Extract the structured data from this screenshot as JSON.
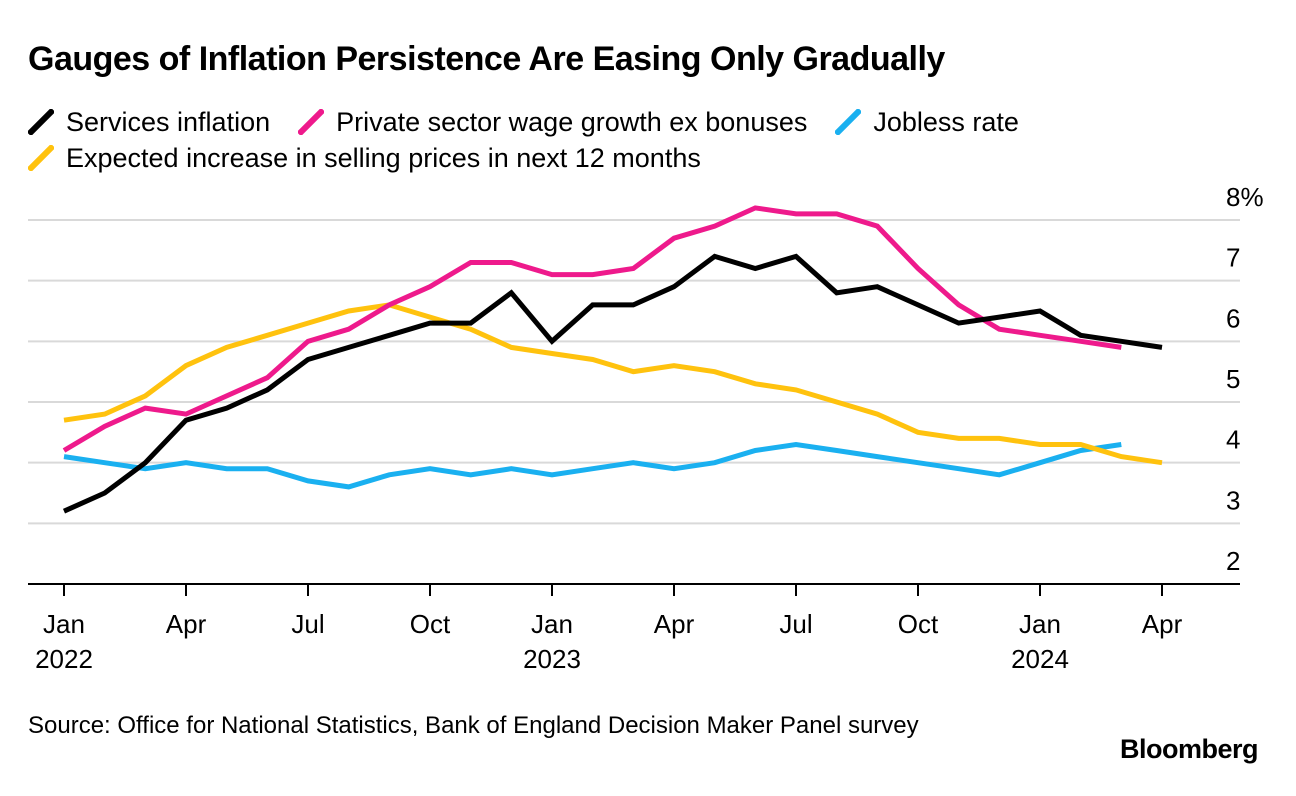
{
  "title": "Gauges of Inflation Persistence Are Easing Only Gradually",
  "source": "Source: Office for National Statistics, Bank of England Decision Maker Panel survey",
  "brand": "Bloomberg",
  "colors": {
    "services": "#000000",
    "wages": "#ee1a8c",
    "jobless": "#1ab0f0",
    "prices": "#ffc20e",
    "grid": "#d9d9d9",
    "axis": "#000000"
  },
  "chart_data": {
    "type": "line",
    "title": "Gauges of Inflation Persistence Are Easing Only Gradually",
    "xlabel": "",
    "ylabel": "",
    "ylim": [
      2,
      8
    ],
    "y_unit": "%",
    "y_ticks": [
      "8%",
      "7",
      "6",
      "5",
      "4",
      "3",
      "2"
    ],
    "grid": true,
    "legend_position": "top-left",
    "x_start": "2022-01",
    "x_end": "2024-04",
    "x_ticks": [
      {
        "date": "2022-01",
        "month": "Jan",
        "year": "2022"
      },
      {
        "date": "2022-04",
        "month": "Apr",
        "year": ""
      },
      {
        "date": "2022-07",
        "month": "Jul",
        "year": ""
      },
      {
        "date": "2022-10",
        "month": "Oct",
        "year": ""
      },
      {
        "date": "2023-01",
        "month": "Jan",
        "year": "2023"
      },
      {
        "date": "2023-04",
        "month": "Apr",
        "year": ""
      },
      {
        "date": "2023-07",
        "month": "Jul",
        "year": ""
      },
      {
        "date": "2023-10",
        "month": "Oct",
        "year": ""
      },
      {
        "date": "2024-01",
        "month": "Jan",
        "year": "2024"
      },
      {
        "date": "2024-04",
        "month": "Apr",
        "year": ""
      }
    ],
    "x": [
      "2022-01",
      "2022-02",
      "2022-03",
      "2022-04",
      "2022-05",
      "2022-06",
      "2022-07",
      "2022-08",
      "2022-09",
      "2022-10",
      "2022-11",
      "2022-12",
      "2023-01",
      "2023-02",
      "2023-03",
      "2023-04",
      "2023-05",
      "2023-06",
      "2023-07",
      "2023-08",
      "2023-09",
      "2023-10",
      "2023-11",
      "2023-12",
      "2024-01",
      "2024-02",
      "2024-03",
      "2024-04"
    ],
    "series": [
      {
        "key": "services",
        "name": "Services inflation",
        "values": [
          3.2,
          3.5,
          4.0,
          4.7,
          4.9,
          5.2,
          5.7,
          5.9,
          6.1,
          6.3,
          6.3,
          6.8,
          6.0,
          6.6,
          6.6,
          6.9,
          7.4,
          7.2,
          7.4,
          6.8,
          6.9,
          6.6,
          6.3,
          6.4,
          6.5,
          6.1,
          6.0,
          5.9
        ]
      },
      {
        "key": "wages",
        "name": "Private sector wage growth ex bonuses",
        "values": [
          4.2,
          4.6,
          4.9,
          4.8,
          5.1,
          5.4,
          6.0,
          6.2,
          6.6,
          6.9,
          7.3,
          7.3,
          7.1,
          7.1,
          7.2,
          7.7,
          7.9,
          8.2,
          8.1,
          8.1,
          7.9,
          7.2,
          6.6,
          6.2,
          6.1,
          6.0,
          5.9,
          null
        ]
      },
      {
        "key": "jobless",
        "name": "Jobless rate",
        "values": [
          4.1,
          4.0,
          3.9,
          4.0,
          3.9,
          3.9,
          3.7,
          3.6,
          3.8,
          3.9,
          3.8,
          3.9,
          3.8,
          3.9,
          4.0,
          3.9,
          4.0,
          4.2,
          4.3,
          4.2,
          4.1,
          4.0,
          3.9,
          3.8,
          4.0,
          4.2,
          4.3,
          null
        ]
      },
      {
        "key": "prices",
        "name": "Expected increase in selling prices in next 12 months",
        "values": [
          4.7,
          4.8,
          5.1,
          5.6,
          5.9,
          6.1,
          6.3,
          6.5,
          6.6,
          6.4,
          6.2,
          5.9,
          5.8,
          5.7,
          5.5,
          5.6,
          5.5,
          5.3,
          5.2,
          5.0,
          4.8,
          4.5,
          4.4,
          4.4,
          4.3,
          4.3,
          4.1,
          4.0
        ]
      }
    ]
  },
  "legend_rows": [
    [
      "services",
      "wages",
      "jobless"
    ],
    [
      "prices"
    ]
  ]
}
